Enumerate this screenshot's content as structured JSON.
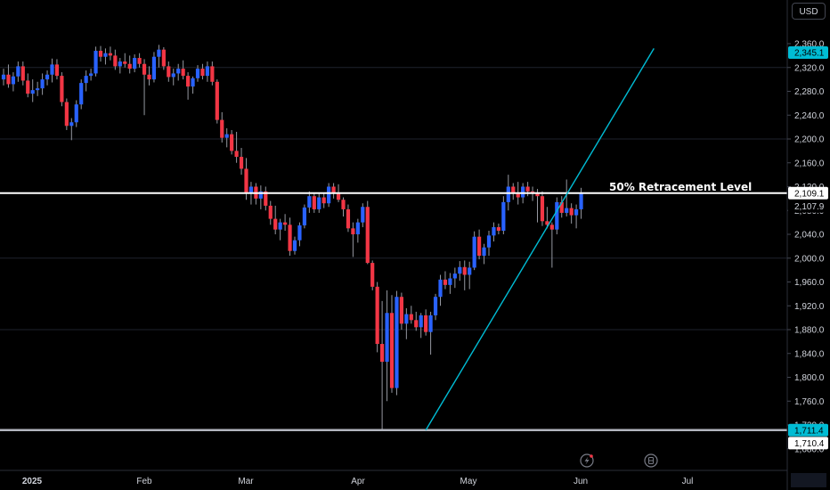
{
  "currency": "USD",
  "colors": {
    "up": "#2962ff",
    "down": "#f23645",
    "trendline": "#00bcd4",
    "hline": "#ffffff",
    "last_price_tag": "#00bcd4"
  },
  "icons": {
    "event_1": "lightning-icon",
    "event_2": "dividend-icon"
  },
  "annotation": "50% Retracement Level",
  "price_tags": {
    "top": "2,345.1",
    "level": "2,109.1",
    "current": "2,107.9",
    "low_highlight": "1,711.4",
    "low": "1,710.4"
  },
  "chart_data": {
    "type": "candlestick",
    "ylim": [
      1680,
      2420
    ],
    "y_ticks": [
      "2,360.0",
      "2,320.0",
      "2,280.0",
      "2,240.0",
      "2,200.0",
      "2,160.0",
      "2,120.0",
      "2,080.0",
      "2,040.0",
      "2,000.0",
      "1,960.0",
      "1,920.0",
      "1,880.0",
      "1,840.0",
      "1,800.0",
      "1,760.0",
      "1,720.0",
      "1,680.0"
    ],
    "x_ticks": [
      "2025",
      "Feb",
      "Mar",
      "Apr",
      "May",
      "Jun",
      "Jul"
    ],
    "horizontal_levels": [
      2109.1,
      1711.4
    ],
    "trendline": [
      [
        87,
        1711.4
      ],
      [
        134,
        2352
      ]
    ],
    "candles": [
      [
        2300,
        2318,
        2290,
        2308
      ],
      [
        2308,
        2325,
        2286,
        2292
      ],
      [
        2292,
        2312,
        2280,
        2305
      ],
      [
        2305,
        2330,
        2296,
        2322
      ],
      [
        2322,
        2330,
        2290,
        2298
      ],
      [
        2298,
        2310,
        2270,
        2276
      ],
      [
        2276,
        2300,
        2262,
        2282
      ],
      [
        2282,
        2296,
        2272,
        2285
      ],
      [
        2285,
        2310,
        2274,
        2300
      ],
      [
        2300,
        2315,
        2290,
        2308
      ],
      [
        2308,
        2335,
        2295,
        2325
      ],
      [
        2325,
        2334,
        2300,
        2306
      ],
      [
        2306,
        2312,
        2255,
        2262
      ],
      [
        2262,
        2268,
        2215,
        2222
      ],
      [
        2222,
        2235,
        2198,
        2228
      ],
      [
        2228,
        2265,
        2220,
        2258
      ],
      [
        2258,
        2300,
        2250,
        2294
      ],
      [
        2294,
        2315,
        2280,
        2306
      ],
      [
        2306,
        2318,
        2298,
        2310
      ],
      [
        2310,
        2355,
        2305,
        2348
      ],
      [
        2348,
        2356,
        2330,
        2338
      ],
      [
        2338,
        2352,
        2325,
        2344
      ],
      [
        2344,
        2355,
        2332,
        2340
      ],
      [
        2340,
        2350,
        2316,
        2322
      ],
      [
        2322,
        2336,
        2310,
        2330
      ],
      [
        2330,
        2344,
        2320,
        2326
      ],
      [
        2326,
        2340,
        2310,
        2318
      ],
      [
        2318,
        2342,
        2312,
        2336
      ],
      [
        2336,
        2344,
        2320,
        2326
      ],
      [
        2326,
        2334,
        2240,
        2308
      ],
      [
        2308,
        2322,
        2290,
        2300
      ],
      [
        2300,
        2346,
        2295,
        2338
      ],
      [
        2338,
        2358,
        2320,
        2350
      ],
      [
        2350,
        2354,
        2316,
        2322
      ],
      [
        2322,
        2330,
        2296,
        2304
      ],
      [
        2304,
        2318,
        2290,
        2310
      ],
      [
        2310,
        2326,
        2298,
        2318
      ],
      [
        2318,
        2332,
        2300,
        2306
      ],
      [
        2306,
        2312,
        2266,
        2288
      ],
      [
        2288,
        2305,
        2276,
        2302
      ],
      [
        2302,
        2324,
        2296,
        2318
      ],
      [
        2318,
        2326,
        2300,
        2306
      ],
      [
        2306,
        2330,
        2296,
        2322
      ],
      [
        2322,
        2330,
        2290,
        2296
      ],
      [
        2296,
        2300,
        2226,
        2232
      ],
      [
        2232,
        2245,
        2194,
        2202
      ],
      [
        2202,
        2218,
        2186,
        2208
      ],
      [
        2208,
        2215,
        2174,
        2180
      ],
      [
        2180,
        2212,
        2160,
        2170
      ],
      [
        2170,
        2185,
        2140,
        2150
      ],
      [
        2150,
        2168,
        2098,
        2110
      ],
      [
        2110,
        2128,
        2090,
        2120
      ],
      [
        2120,
        2126,
        2090,
        2100
      ],
      [
        2100,
        2122,
        2082,
        2112
      ],
      [
        2112,
        2120,
        2080,
        2088
      ],
      [
        2088,
        2096,
        2056,
        2066
      ],
      [
        2066,
        2088,
        2040,
        2048
      ],
      [
        2048,
        2066,
        2030,
        2060
      ],
      [
        2060,
        2074,
        2046,
        2056
      ],
      [
        2056,
        2068,
        2004,
        2012
      ],
      [
        2012,
        2036,
        2006,
        2030
      ],
      [
        2030,
        2060,
        2020,
        2055
      ],
      [
        2055,
        2090,
        2050,
        2085
      ],
      [
        2085,
        2112,
        2076,
        2104
      ],
      [
        2104,
        2110,
        2076,
        2082
      ],
      [
        2082,
        2108,
        2076,
        2102
      ],
      [
        2102,
        2110,
        2084,
        2092
      ],
      [
        2092,
        2126,
        2086,
        2120
      ],
      [
        2120,
        2126,
        2100,
        2108
      ],
      [
        2108,
        2124,
        2094,
        2098
      ],
      [
        2098,
        2102,
        2070,
        2082
      ],
      [
        2082,
        2090,
        2044,
        2050
      ],
      [
        2050,
        2060,
        2002,
        2040
      ],
      [
        2040,
        2066,
        2026,
        2060
      ],
      [
        2060,
        2092,
        2052,
        2086
      ],
      [
        2086,
        2096,
        1990,
        1992
      ],
      [
        1992,
        1996,
        1946,
        1952
      ],
      [
        1952,
        1960,
        1842,
        1856
      ],
      [
        1856,
        1928,
        1710,
        1826
      ],
      [
        1826,
        1946,
        1760,
        1908
      ],
      [
        1908,
        1938,
        1774,
        1782
      ],
      [
        1782,
        1945,
        1770,
        1935
      ],
      [
        1935,
        1942,
        1880,
        1890
      ],
      [
        1890,
        1916,
        1864,
        1906
      ],
      [
        1906,
        1920,
        1890,
        1896
      ],
      [
        1896,
        1910,
        1878,
        1884
      ],
      [
        1884,
        1908,
        1866,
        1904
      ],
      [
        1904,
        1914,
        1870,
        1876
      ],
      [
        1876,
        1910,
        1838,
        1904
      ],
      [
        1904,
        1940,
        1896,
        1935
      ],
      [
        1935,
        1972,
        1920,
        1964
      ],
      [
        1964,
        1978,
        1948,
        1955
      ],
      [
        1955,
        1975,
        1940,
        1966
      ],
      [
        1966,
        1984,
        1950,
        1974
      ],
      [
        1974,
        1995,
        1962,
        1985
      ],
      [
        1985,
        1996,
        1946,
        1972
      ],
      [
        1972,
        1994,
        1948,
        1984
      ],
      [
        1984,
        2045,
        1980,
        2036
      ],
      [
        2036,
        2048,
        1998,
        2004
      ],
      [
        2004,
        2024,
        1990,
        2018
      ],
      [
        2018,
        2046,
        2004,
        2038
      ],
      [
        2038,
        2060,
        2028,
        2052
      ],
      [
        2052,
        2058,
        2040,
        2046
      ],
      [
        2046,
        2104,
        2040,
        2094
      ],
      [
        2094,
        2140,
        2080,
        2120
      ],
      [
        2120,
        2126,
        2098,
        2108
      ],
      [
        2108,
        2128,
        2090,
        2102
      ],
      [
        2102,
        2126,
        2092,
        2120
      ],
      [
        2120,
        2128,
        2104,
        2112
      ],
      [
        2112,
        2120,
        2096,
        2108
      ],
      [
        2108,
        2116,
        2060,
        2104
      ],
      [
        2104,
        2112,
        2054,
        2062
      ],
      [
        2062,
        2086,
        2050,
        2056
      ],
      [
        2056,
        2060,
        1984,
        2048
      ],
      [
        2048,
        2102,
        2040,
        2094
      ],
      [
        2094,
        2104,
        2068,
        2076
      ],
      [
        2076,
        2132,
        2070,
        2084
      ],
      [
        2084,
        2092,
        2058,
        2072
      ],
      [
        2072,
        2090,
        2050,
        2082
      ],
      [
        2082,
        2118,
        2066,
        2108
      ]
    ]
  }
}
